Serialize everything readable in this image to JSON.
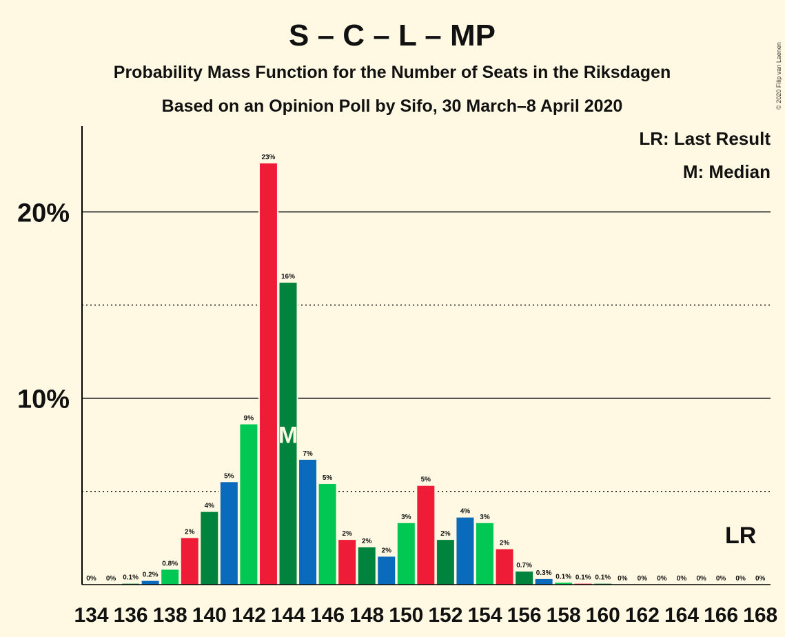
{
  "copyright": "© 2020 Filip van Laenen",
  "colors": {
    "background": "#FFF9E3",
    "bar_palette": [
      "#00C853",
      "#EF1C38",
      "#00843D",
      "#0A6BBD"
    ]
  },
  "chart_data": {
    "type": "bar",
    "title": "S – C – L – MP",
    "subtitle": "Probability Mass Function for the Number of Seats in the Riksdagen",
    "subtitle2": "Based on an Opinion Poll by Sifo, 30 March–8 April 2020",
    "xlabel": "",
    "ylabel": "",
    "ylim": [
      0,
      24.6
    ],
    "yticks": [
      {
        "value": 10,
        "label": "10%"
      },
      {
        "value": 20,
        "label": "20%"
      }
    ],
    "dotted_gridlines": [
      5,
      15
    ],
    "x_tick_labels": [
      "134",
      "136",
      "138",
      "140",
      "142",
      "144",
      "146",
      "148",
      "150",
      "152",
      "154",
      "156",
      "158",
      "160",
      "162",
      "164",
      "166",
      "168"
    ],
    "categories": [
      134,
      135,
      136,
      137,
      138,
      139,
      140,
      141,
      142,
      143,
      144,
      145,
      146,
      147,
      148,
      149,
      150,
      151,
      152,
      153,
      154,
      155,
      156,
      157,
      158,
      159,
      160,
      161,
      162,
      163,
      164,
      165,
      166,
      167,
      168
    ],
    "values": [
      0,
      0,
      0.05,
      0.2,
      0.8,
      2.5,
      3.9,
      5.5,
      8.6,
      22.6,
      16.2,
      6.7,
      5.4,
      2.4,
      2.0,
      1.5,
      3.3,
      5.3,
      2.4,
      3.6,
      3.3,
      1.9,
      0.7,
      0.3,
      0.1,
      0.05,
      0.05,
      0,
      0,
      0,
      0,
      0,
      0,
      0,
      0
    ],
    "data_labels": [
      "0%",
      "0%",
      "0.1%",
      "0.2%",
      "0.8%",
      "2%",
      "4%",
      "5%",
      "9%",
      "23%",
      "16%",
      "7%",
      "5%",
      "2%",
      "2%",
      "2%",
      "3%",
      "5%",
      "2%",
      "4%",
      "3%",
      "2%",
      "0.7%",
      "0.3%",
      "0.1%",
      "0.1%",
      "0.1%",
      "0%",
      "0%",
      "0%",
      "0%",
      "0%",
      "0%",
      "0%",
      "0%"
    ],
    "median_seat": 144,
    "median_marker": "M",
    "last_result_seat": 167,
    "last_result_marker": "LR",
    "legend": [
      {
        "text": "LR: Last Result"
      },
      {
        "text": "M: Median"
      }
    ],
    "legend_position": "top-right"
  }
}
